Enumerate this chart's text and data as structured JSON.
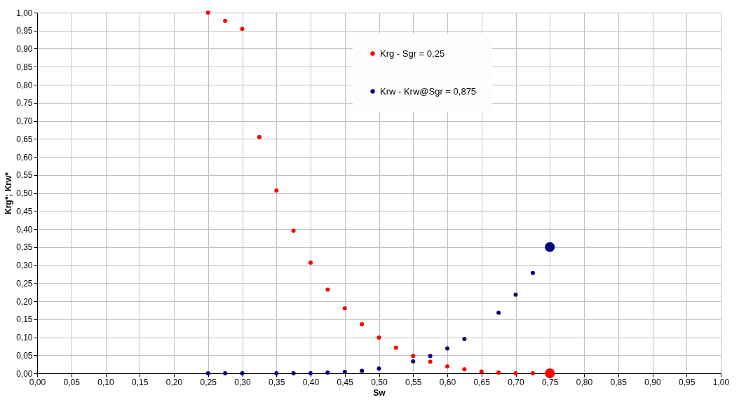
{
  "chart_data": {
    "type": "scatter",
    "xlabel": "Sw",
    "ylabel": "Krg*; Krw*",
    "marker": "circle",
    "grid": true,
    "legend": "top",
    "xlim": [
      0,
      1
    ],
    "ylim": [
      0,
      1
    ],
    "xticks": [
      {
        "value": 0,
        "label": "0,00"
      },
      {
        "value": 0.05,
        "label": "0,05"
      },
      {
        "value": 0.1,
        "label": "0,10"
      },
      {
        "value": 0.15,
        "label": "0,15"
      },
      {
        "value": 0.2,
        "label": "0,20"
      },
      {
        "value": 0.25,
        "label": "0,25"
      },
      {
        "value": 0.3,
        "label": "0,30"
      },
      {
        "value": 0.35,
        "label": "0,35"
      },
      {
        "value": 0.4,
        "label": "0,40"
      },
      {
        "value": 0.45,
        "label": "0,45"
      },
      {
        "value": 0.5,
        "label": "0,50"
      },
      {
        "value": 0.55,
        "label": "0,55"
      },
      {
        "value": 0.6,
        "label": "0,60"
      },
      {
        "value": 0.65,
        "label": "0,65"
      },
      {
        "value": 0.7,
        "label": "0,70"
      },
      {
        "value": 0.75,
        "label": "0,75"
      },
      {
        "value": 0.8,
        "label": "0,80"
      },
      {
        "value": 0.85,
        "label": "0,85"
      },
      {
        "value": 0.9,
        "label": "0,90"
      },
      {
        "value": 0.95,
        "label": "0,95"
      },
      {
        "value": 1,
        "label": "1,00"
      }
    ],
    "yticks": [
      {
        "value": 0,
        "label": "0,00"
      },
      {
        "value": 0.05,
        "label": "0,05"
      },
      {
        "value": 0.1,
        "label": "0,10"
      },
      {
        "value": 0.15,
        "label": "0,15"
      },
      {
        "value": 0.2,
        "label": "0,20"
      },
      {
        "value": 0.25,
        "label": "0,25"
      },
      {
        "value": 0.3,
        "label": "0,30"
      },
      {
        "value": 0.35,
        "label": "0,35"
      },
      {
        "value": 0.4,
        "label": "0,40"
      },
      {
        "value": 0.45,
        "label": "0,45"
      },
      {
        "value": 0.5,
        "label": "0,50"
      },
      {
        "value": 0.55,
        "label": "0,55"
      },
      {
        "value": 0.6,
        "label": "0,60"
      },
      {
        "value": 0.65,
        "label": "0,65"
      },
      {
        "value": 0.7,
        "label": "0,70"
      },
      {
        "value": 0.75,
        "label": "0,75"
      },
      {
        "value": 0.8,
        "label": "0,80"
      },
      {
        "value": 0.85,
        "label": "0,85"
      },
      {
        "value": 0.9,
        "label": "0,90"
      },
      {
        "value": 0.95,
        "label": "0,95"
      },
      {
        "value": 1,
        "label": "1,00"
      }
    ],
    "series": [
      {
        "name": "Krg - Sgr = 0,25",
        "color": "#ff0000",
        "x": [
          0.25,
          0.275,
          0.3,
          0.325,
          0.35,
          0.375,
          0.4,
          0.425,
          0.45,
          0.475,
          0.5,
          0.525,
          0.55,
          0.575,
          0.6,
          0.625,
          0.65,
          0.675,
          0.7,
          0.725
        ],
        "values": [
          1.0,
          0.977,
          0.955,
          0.655,
          0.507,
          0.395,
          0.307,
          0.232,
          0.18,
          0.136,
          0.099,
          0.071,
          0.048,
          0.032,
          0.019,
          0.011,
          0.005,
          0.002,
          0.0,
          0.0
        ]
      },
      {
        "name": "Krw - Krw@Sgr = 0,875",
        "color": "#000080",
        "x": [
          0.25,
          0.275,
          0.3,
          0.35,
          0.375,
          0.4,
          0.425,
          0.45,
          0.475,
          0.5,
          0.55,
          0.575,
          0.6,
          0.625,
          0.675,
          0.7,
          0.725
        ],
        "values": [
          0.0,
          0.0,
          0.0,
          0.0,
          0.0,
          0.0,
          0.002,
          0.004,
          0.007,
          0.013,
          0.033,
          0.048,
          0.069,
          0.095,
          0.168,
          0.218,
          0.278
        ]
      },
      {
        "type": "bubble",
        "color": "#ff0000",
        "x": [
          0.75
        ],
        "values": [
          0.0
        ],
        "sizes": [
          1
        ]
      },
      {
        "type": "bubble",
        "color": "#000080",
        "x": [
          0.75
        ],
        "values": [
          0.35
        ],
        "sizes": [
          1
        ]
      }
    ]
  }
}
